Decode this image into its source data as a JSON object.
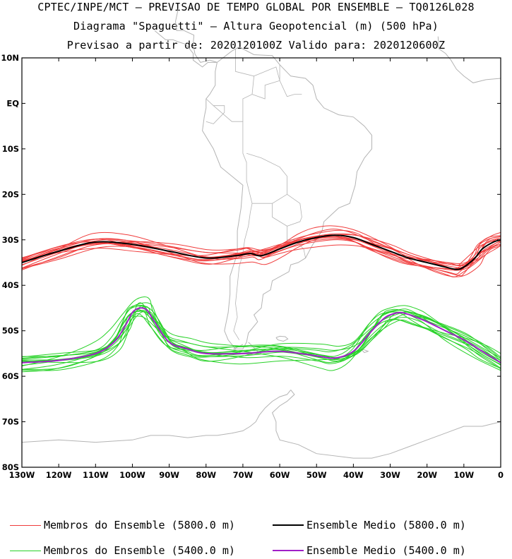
{
  "header": {
    "line1": "CPTEC/INPE/MCT — PREVISAO DE TEMPO GLOBAL POR ENSEMBLE — TQ0126L028",
    "line2": "Diagrama \"Spaguetti\" — Altura Geopotencial (m) (500 hPa)",
    "line3": "Previsao a partir de: 2020120100Z  Valido para: 2020120600Z"
  },
  "map": {
    "lat_labels": [
      "10N",
      "EQ",
      "10S",
      "20S",
      "30S",
      "40S",
      "50S",
      "60S",
      "70S",
      "80S"
    ],
    "lat_values": [
      10,
      0,
      -10,
      -20,
      -30,
      -40,
      -50,
      -60,
      -70,
      -80
    ],
    "lon_labels": [
      "130W",
      "120W",
      "110W",
      "100W",
      "90W",
      "80W",
      "70W",
      "60W",
      "50W",
      "40W",
      "30W",
      "20W",
      "10W",
      "0"
    ],
    "lon_values": [
      -130,
      -120,
      -110,
      -100,
      -90,
      -80,
      -70,
      -60,
      -50,
      -40,
      -30,
      -20,
      -10,
      0
    ],
    "lon_range": [
      -130,
      0
    ],
    "lat_range": [
      -80,
      10
    ],
    "coastline_color": "#b4b4b4",
    "contour_5800": {
      "label": "5800.0 m",
      "member_color": "#f03c3c",
      "mean_color": "#000000",
      "mean_lon": [
        -130,
        -120,
        -110,
        -100,
        -90,
        -80,
        -72,
        -68,
        -65,
        -60,
        -55,
        -50,
        -45,
        -40,
        -35,
        -30,
        -25,
        -20,
        -15,
        -12,
        -10,
        -7,
        -5,
        -2,
        0
      ],
      "mean_lat": [
        -35,
        -32.5,
        -30.5,
        -31,
        -32.5,
        -34,
        -33.5,
        -33,
        -33.5,
        -32,
        -30.5,
        -29.5,
        -29,
        -29.5,
        -31,
        -32.5,
        -34,
        -35,
        -36,
        -36.5,
        -36,
        -34,
        -32,
        -30.5,
        -30
      ]
    },
    "contour_5400": {
      "label": "5400.0 m",
      "member_color": "#28d228",
      "mean_color": "#a020c8",
      "mean_lon": [
        -130,
        -120,
        -110,
        -105,
        -102,
        -100,
        -98,
        -96,
        -94,
        -90,
        -85,
        -80,
        -70,
        -60,
        -50,
        -45,
        -40,
        -35,
        -32,
        -30,
        -27,
        -23,
        -20,
        -15,
        -10,
        -5,
        0
      ],
      "mean_lat": [
        -57,
        -56.5,
        -55,
        -52.5,
        -49,
        -46,
        -45,
        -45.5,
        -48,
        -52.5,
        -54,
        -55,
        -55,
        -54.5,
        -55.5,
        -56,
        -54.5,
        -50,
        -47.5,
        -46.5,
        -46,
        -47,
        -48,
        -50,
        -52,
        -54.5,
        -57
      ]
    }
  },
  "legend": {
    "members_5800": "Membros do Ensemble (5800.0 m)",
    "mean_5800": "Ensemble Medio (5800.0 m)",
    "members_5400": "Membros do Ensemble (5400.0 m)",
    "mean_5400": "Ensemble Medio (5400.0 m)"
  }
}
